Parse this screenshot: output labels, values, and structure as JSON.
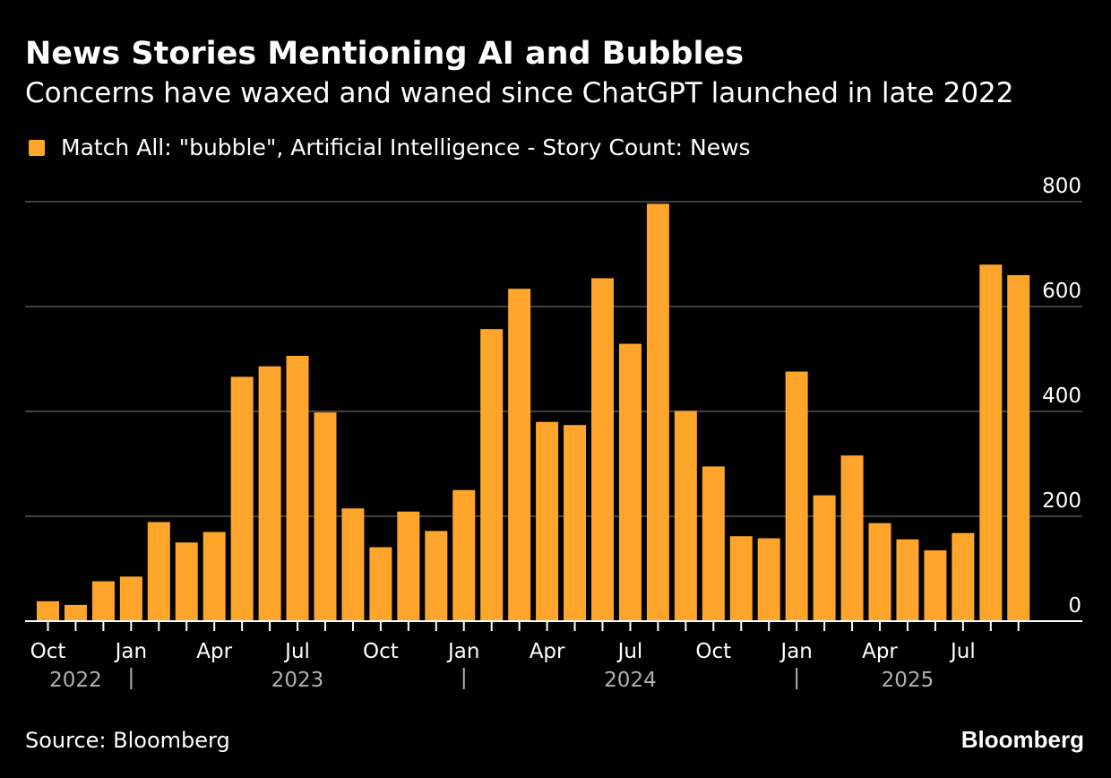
{
  "title": "News Stories Mentioning AI and Bubbles",
  "subtitle": "Concerns have waxed and waned since ChatGPT launched in late 2022",
  "legend": {
    "label": "Match All: \"bubble\", Artificial Intelligence - Story Count: News"
  },
  "source": "Source: Bloomberg",
  "brand": "Bloomberg",
  "colors": {
    "bar": "#ffa52c",
    "background": "#000000",
    "grid": "#555555",
    "text": "#ffffff",
    "year_text": "#b0b0b0"
  },
  "chart_data": {
    "type": "bar",
    "categories": [
      "2022-10",
      "2022-11",
      "2022-12",
      "2023-01",
      "2023-02",
      "2023-03",
      "2023-04",
      "2023-05",
      "2023-06",
      "2023-07",
      "2023-08",
      "2023-09",
      "2023-10",
      "2023-11",
      "2023-12",
      "2024-01",
      "2024-02",
      "2024-03",
      "2024-04",
      "2024-05",
      "2024-06",
      "2024-07",
      "2024-08",
      "2024-09",
      "2024-10",
      "2024-11",
      "2024-12",
      "2025-01",
      "2025-02",
      "2025-03",
      "2025-04",
      "2025-05",
      "2025-06",
      "2025-07",
      "2025-08",
      "2025-09"
    ],
    "series": [
      {
        "name": "Match All: \"bubble\", Artificial Intelligence - Story Count: News",
        "values": [
          38,
          31,
          76,
          85,
          189,
          150,
          170,
          466,
          486,
          506,
          398,
          215,
          141,
          209,
          172,
          250,
          557,
          634,
          380,
          374,
          654,
          529,
          796,
          401,
          295,
          162,
          158,
          476,
          240,
          316,
          187,
          156,
          135,
          168,
          680,
          660
        ]
      }
    ],
    "ylim": [
      0,
      800
    ],
    "y_ticks": [
      "0",
      "200",
      "400",
      "600",
      "800"
    ],
    "y_tick_values": [
      0,
      200,
      400,
      600,
      800
    ],
    "y_axis_side": "right",
    "grid": true,
    "x_tick_labels": [
      {
        "category": "2022-10",
        "label": "Oct"
      },
      {
        "category": "2023-01",
        "label": "Jan"
      },
      {
        "category": "2023-04",
        "label": "Apr"
      },
      {
        "category": "2023-07",
        "label": "Jul"
      },
      {
        "category": "2023-10",
        "label": "Oct"
      },
      {
        "category": "2024-01",
        "label": "Jan"
      },
      {
        "category": "2024-04",
        "label": "Apr"
      },
      {
        "category": "2024-07",
        "label": "Jul"
      },
      {
        "category": "2024-10",
        "label": "Oct"
      },
      {
        "category": "2025-01",
        "label": "Jan"
      },
      {
        "category": "2025-04",
        "label": "Apr"
      },
      {
        "category": "2025-07",
        "label": "Jul"
      }
    ],
    "year_labels": [
      {
        "label": "2022",
        "center_category": "2022-11"
      },
      {
        "label": "2023",
        "center_category": "2023-07"
      },
      {
        "label": "2024",
        "center_category": "2024-07"
      },
      {
        "label": "2025",
        "center_category": "2025-05"
      }
    ],
    "year_separators": [
      "2023-01",
      "2024-01",
      "2025-01"
    ],
    "legend_placement": "top-left"
  }
}
